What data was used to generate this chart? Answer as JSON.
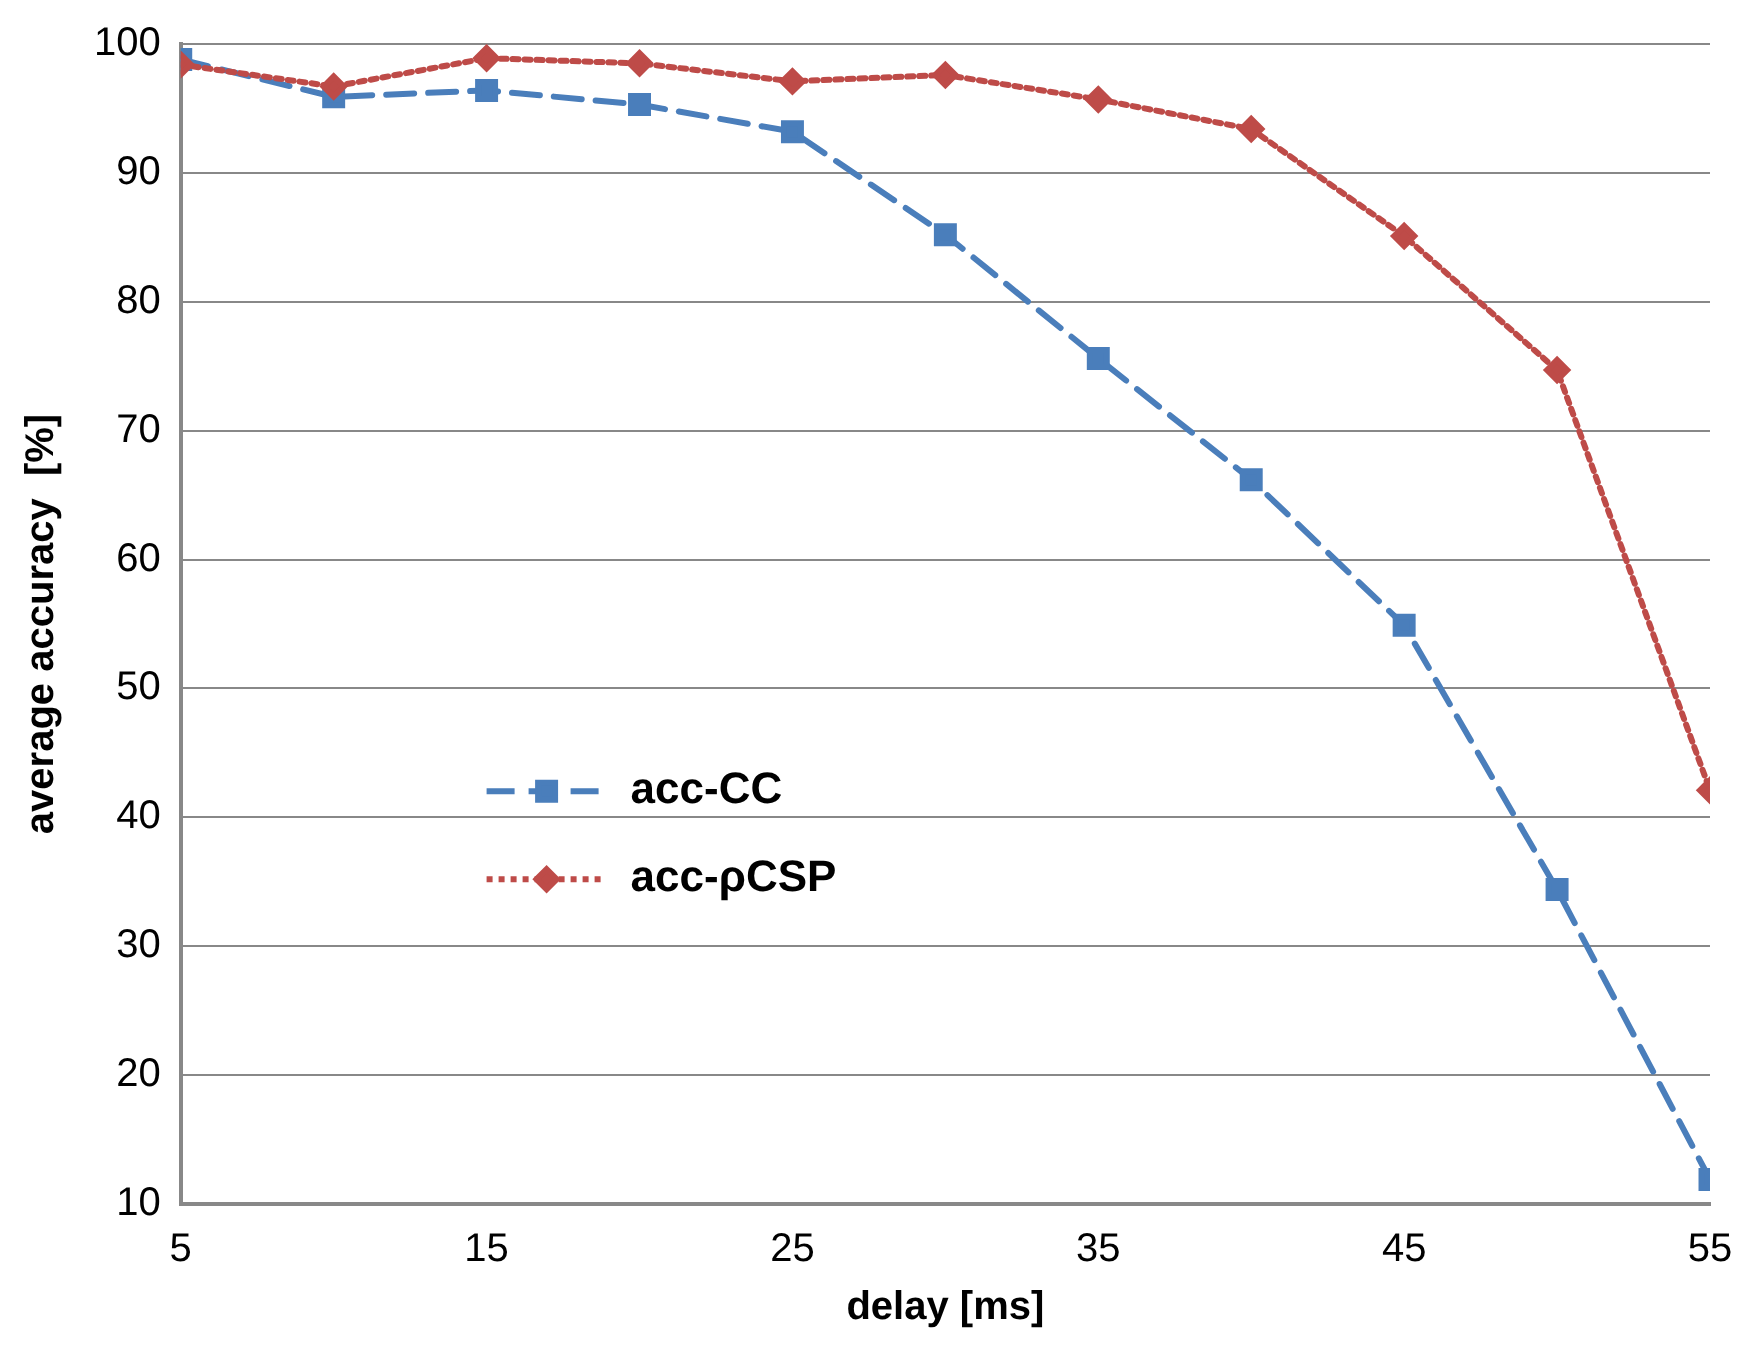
{
  "chart_data": {
    "type": "line",
    "xlabel": "delay [ms]",
    "ylabel": "average accuracy  [%]",
    "x": [
      5,
      10,
      15,
      20,
      25,
      30,
      35,
      40,
      45,
      50,
      55
    ],
    "series": [
      {
        "name": "acc-CC",
        "color": "#4a7ebb",
        "marker": "square",
        "line_style": "dashed",
        "values": [
          98.8,
          95.9,
          96.4,
          95.3,
          93.2,
          85.2,
          75.6,
          66.2,
          54.9,
          34.4,
          11.9
        ]
      },
      {
        "name": "acc-ρCSP",
        "color": "#be4b48",
        "marker": "diamond",
        "line_style": "dotted",
        "values": [
          98.4,
          96.7,
          98.9,
          98.5,
          97.1,
          97.6,
          95.7,
          93.4,
          85.1,
          74.7,
          42.1
        ]
      }
    ],
    "xlim": [
      5,
      55
    ],
    "xticks": [
      5,
      15,
      25,
      35,
      45,
      55
    ],
    "ylim": [
      10,
      100
    ],
    "yticks": [
      10,
      20,
      30,
      40,
      50,
      60,
      70,
      80,
      90,
      100
    ],
    "grid": "y",
    "legend": "center left"
  }
}
